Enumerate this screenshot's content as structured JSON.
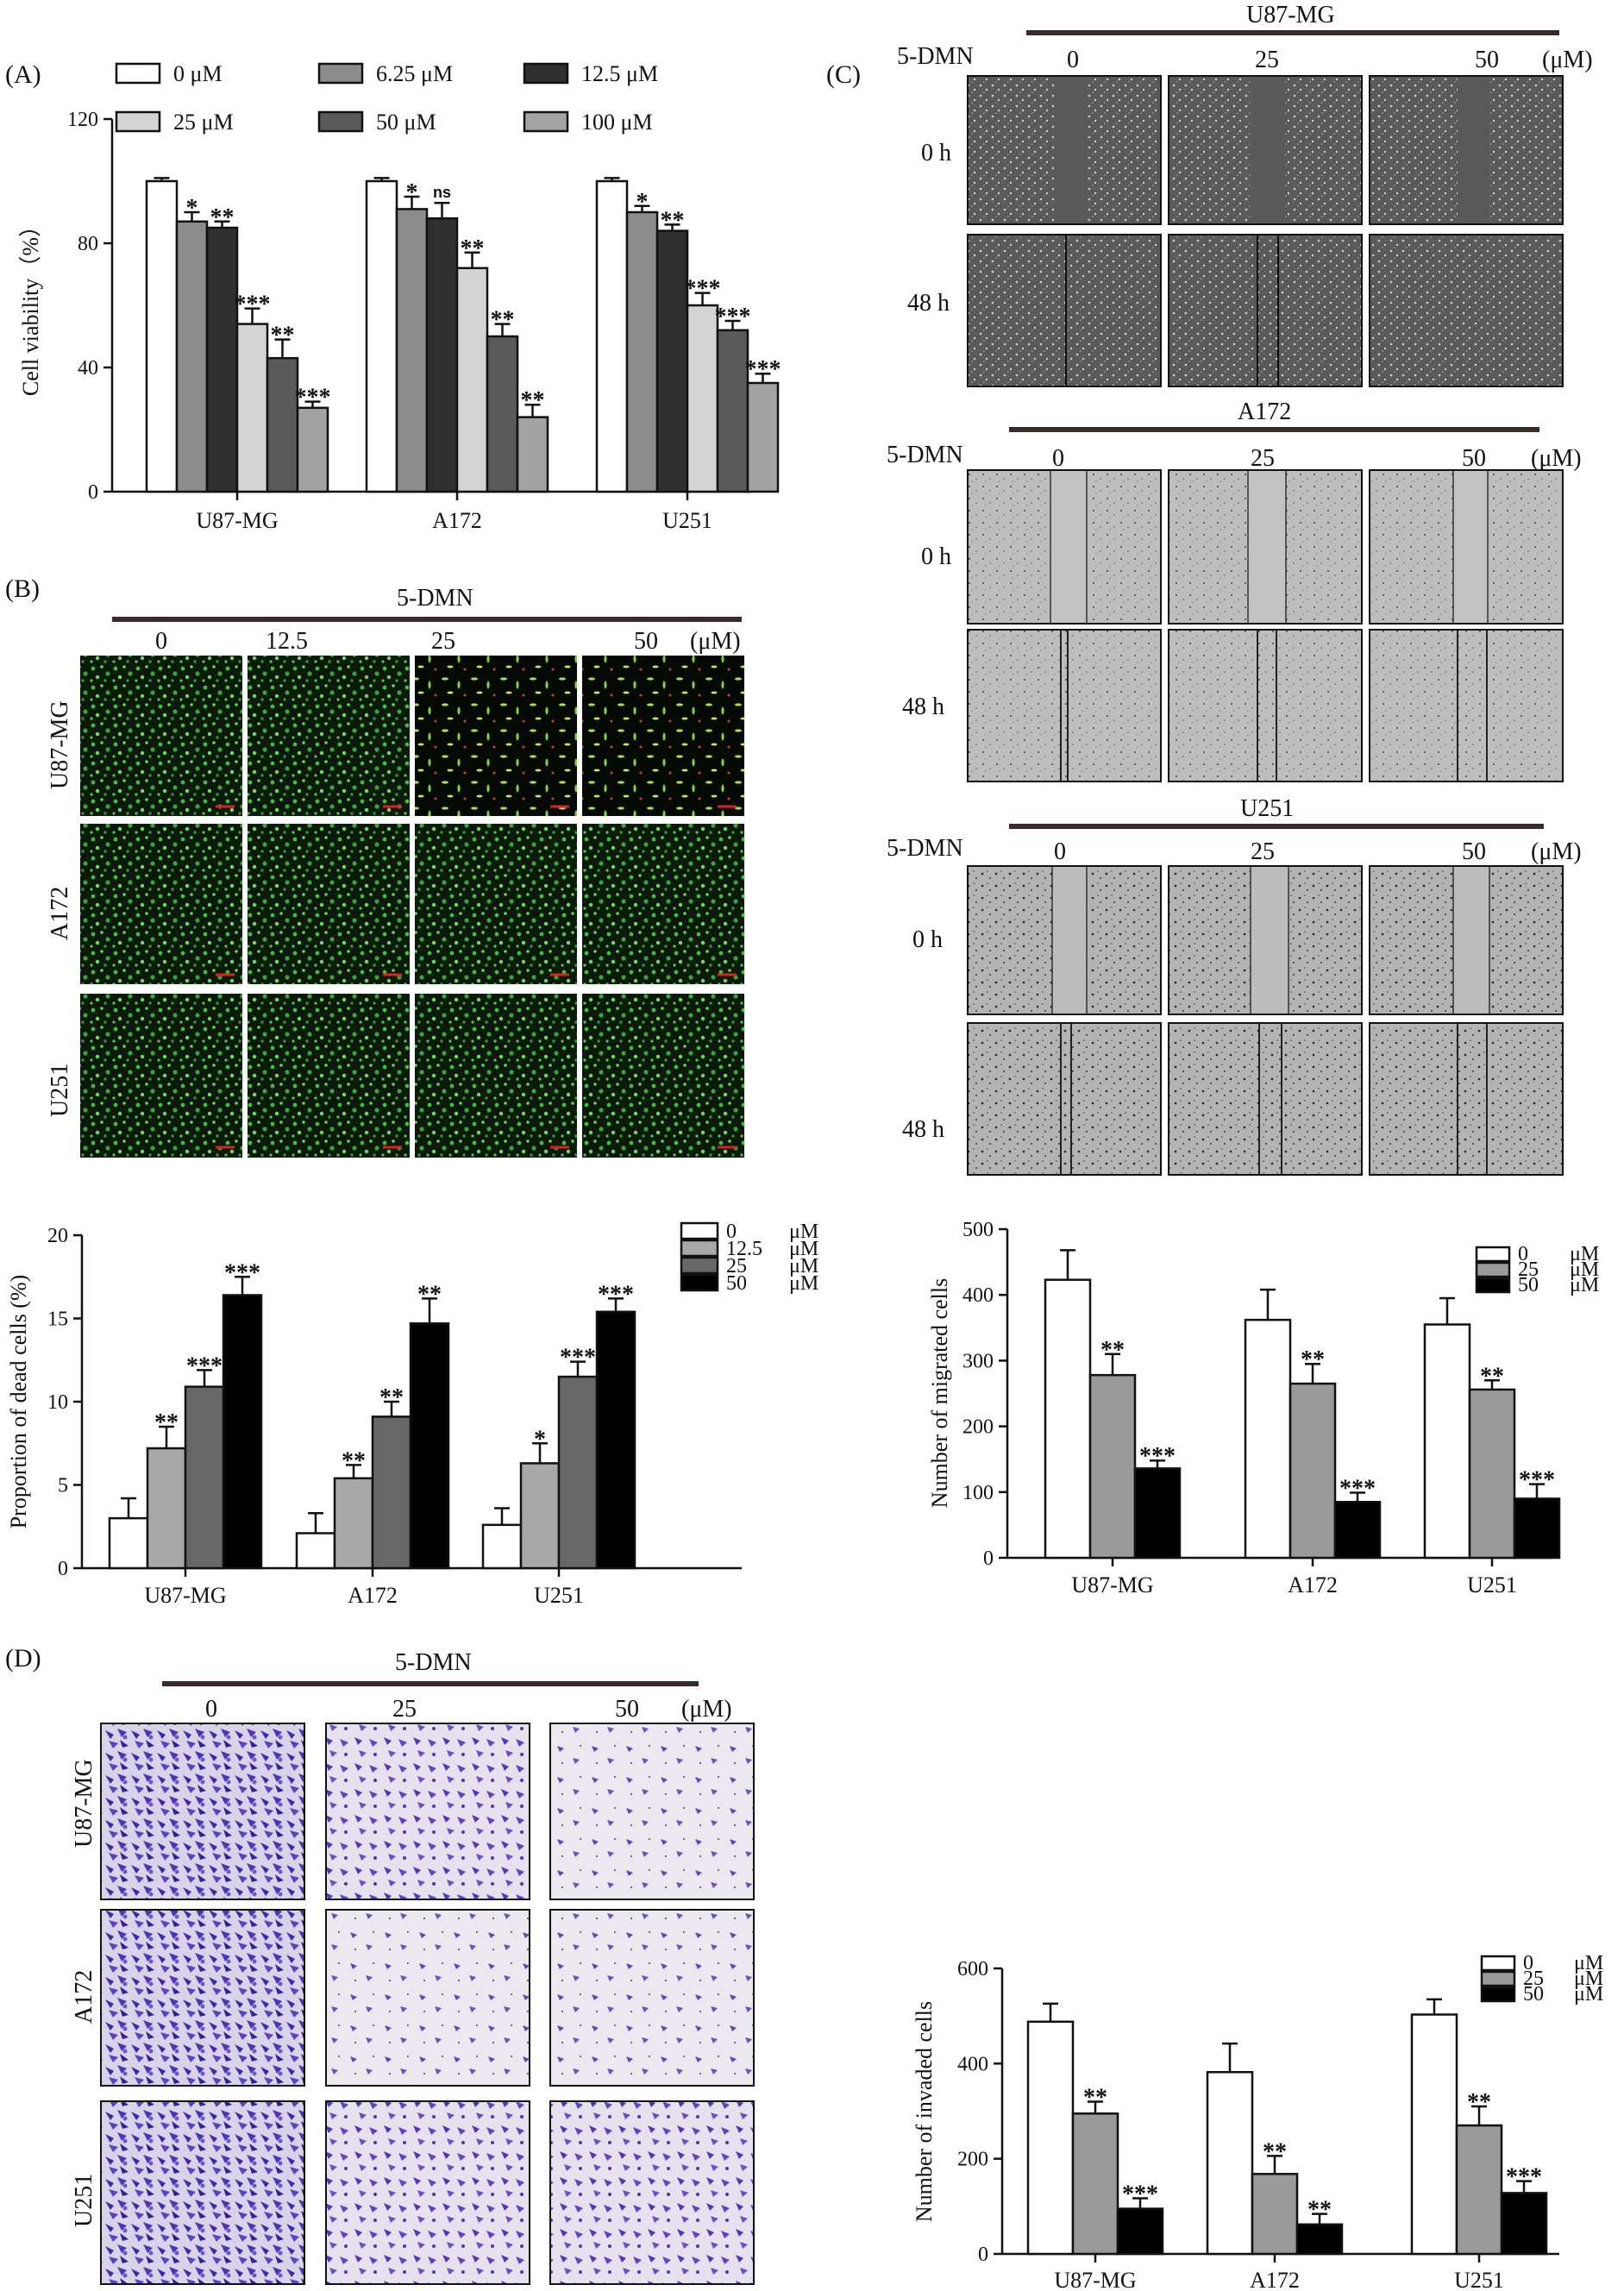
{
  "palette": {
    "c0": "#ffffff",
    "c625": "#8c8c8c",
    "c125": "#2f2f2f",
    "c25": "#d4d4d4",
    "c50": "#5a5a5a",
    "c100": "#a3a3a3",
    "b0": "#ffffff",
    "b125": "#a8a8a8",
    "b25": "#676767",
    "b50": "#000000",
    "m0": "#ffffff",
    "m25": "#9a9a9a",
    "m50": "#000000"
  },
  "panels": {
    "A": "(A)",
    "B": "(B)",
    "C": "(C)",
    "D": "(D)"
  },
  "micro": {
    "treatment": "5-DMN",
    "unit": "(μM)",
    "B": {
      "doses": [
        "0",
        "12.5",
        "25",
        "50"
      ],
      "rows": [
        "U87-MG",
        "A172",
        "U251"
      ]
    },
    "C": {
      "doses": [
        "0",
        "25",
        "50"
      ],
      "times": [
        "0 h",
        "48 h"
      ],
      "groups": [
        "U87-MG",
        "A172",
        "U251"
      ]
    },
    "D": {
      "doses": [
        "0",
        "25",
        "50"
      ],
      "rows": [
        "U87-MG",
        "A172",
        "U251"
      ]
    }
  },
  "chart_data": [
    {
      "id": "A",
      "type": "bar",
      "ylabel": "Cell viability（%）",
      "ylim": [
        0,
        120
      ],
      "yticks": [
        0,
        40,
        80,
        120
      ],
      "categories": [
        "U87-MG",
        "A172",
        "U251"
      ],
      "legend": "top",
      "series": [
        {
          "name": "0  μM",
          "values": [
            100,
            100,
            100
          ],
          "err": [
            1,
            1,
            1
          ],
          "sig": [
            "",
            "",
            ""
          ]
        },
        {
          "name": "6.25 μM",
          "values": [
            87,
            91,
            90
          ],
          "err": [
            3,
            4,
            2
          ],
          "sig": [
            "*",
            "*",
            "*"
          ]
        },
        {
          "name": "12.5 μM",
          "values": [
            85,
            88,
            84
          ],
          "err": [
            2,
            5,
            2
          ],
          "sig": [
            "**",
            "ns",
            "**"
          ]
        },
        {
          "name": "25 μM",
          "values": [
            54,
            72,
            60
          ],
          "err": [
            5,
            5,
            4
          ],
          "sig": [
            "***",
            "**",
            "***"
          ]
        },
        {
          "name": "50 μM",
          "values": [
            43,
            50,
            52
          ],
          "err": [
            6,
            4,
            3
          ],
          "sig": [
            "**",
            "**",
            "***"
          ]
        },
        {
          "name": "100 μM",
          "values": [
            27,
            24,
            35
          ],
          "err": [
            2,
            4,
            3
          ],
          "sig": [
            "***",
            "**",
            "***"
          ]
        }
      ]
    },
    {
      "id": "B",
      "type": "bar",
      "ylabel": "Proportion of dead cells (%)",
      "ylim": [
        0,
        20
      ],
      "yticks": [
        0,
        5,
        10,
        15,
        20
      ],
      "categories": [
        "U87-MG",
        "A172",
        "U251"
      ],
      "legend": "top-right",
      "series": [
        {
          "name": "0",
          "unit": "μM",
          "values": [
            3.0,
            2.1,
            2.6
          ],
          "err": [
            1.2,
            1.2,
            1.0
          ],
          "sig": [
            "",
            "",
            ""
          ]
        },
        {
          "name": "12.5",
          "unit": "μM",
          "values": [
            7.2,
            5.4,
            6.3
          ],
          "err": [
            1.3,
            0.8,
            1.2
          ],
          "sig": [
            "**",
            "**",
            "*"
          ]
        },
        {
          "name": "25",
          "unit": "μM",
          "values": [
            10.9,
            9.1,
            11.5
          ],
          "err": [
            1.0,
            0.9,
            0.9
          ],
          "sig": [
            "***",
            "**",
            "***"
          ]
        },
        {
          "name": "50",
          "unit": "μM",
          "values": [
            16.4,
            14.7,
            15.4
          ],
          "err": [
            1.1,
            1.5,
            0.8
          ],
          "sig": [
            "***",
            "**",
            "***"
          ]
        }
      ]
    },
    {
      "id": "C",
      "type": "bar",
      "ylabel": "Number of  migrated cells",
      "ylim": [
        0,
        500
      ],
      "yticks": [
        0,
        100,
        200,
        300,
        400,
        500
      ],
      "categories": [
        "U87-MG",
        "A172",
        "U251"
      ],
      "legend": "top-right",
      "series": [
        {
          "name": "0",
          "unit": "μM",
          "values": [
            423,
            362,
            355
          ],
          "err": [
            45,
            46,
            40
          ],
          "sig": [
            "",
            "",
            ""
          ]
        },
        {
          "name": "25",
          "unit": "μM",
          "values": [
            278,
            265,
            256
          ],
          "err": [
            32,
            30,
            14
          ],
          "sig": [
            "**",
            "**",
            "**"
          ]
        },
        {
          "name": "50",
          "unit": "μM",
          "values": [
            136,
            85,
            90
          ],
          "err": [
            12,
            14,
            22
          ],
          "sig": [
            "***",
            "***",
            "***"
          ]
        }
      ]
    },
    {
      "id": "D",
      "type": "bar",
      "ylabel": "Number of invaded cells",
      "ylim": [
        0,
        600
      ],
      "yticks": [
        0,
        200,
        400,
        600
      ],
      "categories": [
        "U87-MG",
        "A172",
        "U251"
      ],
      "legend": "top-right",
      "series": [
        {
          "name": "0",
          "unit": "μM",
          "values": [
            488,
            382,
            503
          ],
          "err": [
            38,
            60,
            32
          ],
          "sig": [
            "",
            "",
            ""
          ]
        },
        {
          "name": "25",
          "unit": "μM",
          "values": [
            295,
            168,
            270
          ],
          "err": [
            25,
            38,
            40
          ],
          "sig": [
            "**",
            "**",
            "**"
          ]
        },
        {
          "name": "50",
          "unit": "μM",
          "values": [
            95,
            62,
            128
          ],
          "err": [
            22,
            22,
            25
          ],
          "sig": [
            "***",
            "**",
            "***"
          ]
        }
      ]
    }
  ]
}
